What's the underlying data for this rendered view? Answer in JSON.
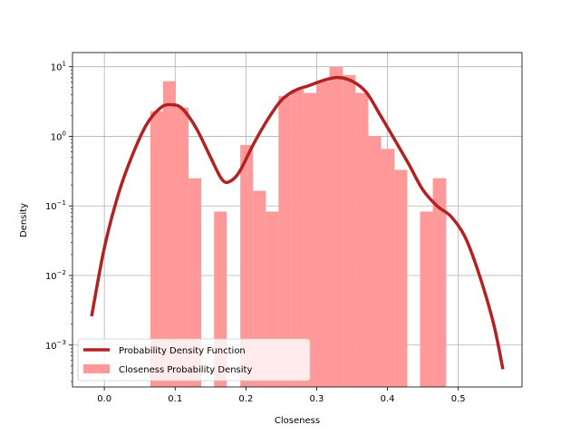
{
  "chart_data": {
    "type": "bar",
    "title": "",
    "xlabel": "Closeness",
    "ylabel": "Density",
    "xlim": [
      -0.045,
      0.59
    ],
    "ylim": [
      0.00025,
      16
    ],
    "y_scale": "log",
    "grid": true,
    "x_ticks": [
      {
        "value": 0.0,
        "label": "0.0"
      },
      {
        "value": 0.1,
        "label": "0.1"
      },
      {
        "value": 0.2,
        "label": "0.2"
      },
      {
        "value": 0.3,
        "label": "0.3"
      },
      {
        "value": 0.4,
        "label": "0.4"
      },
      {
        "value": 0.5,
        "label": "0.5"
      }
    ],
    "y_ticks": [
      {
        "value": 0.001,
        "base": "10",
        "exp": "−3"
      },
      {
        "value": 0.01,
        "base": "10",
        "exp": "−2"
      },
      {
        "value": 0.1,
        "base": "10",
        "exp": "−1"
      },
      {
        "value": 1,
        "base": "10",
        "exp": "0"
      },
      {
        "value": 10,
        "base": "10",
        "exp": "1"
      }
    ],
    "legend_position": "lower-left",
    "series": [
      {
        "name": "Closeness Probability Density",
        "kind": "histogram",
        "color": "#ff9999",
        "bins": [
          {
            "x0": 0.065,
            "x1": 0.083,
            "y": 2.3
          },
          {
            "x0": 0.083,
            "x1": 0.101,
            "y": 6.2
          },
          {
            "x0": 0.101,
            "x1": 0.119,
            "y": 2.6
          },
          {
            "x0": 0.119,
            "x1": 0.137,
            "y": 0.25
          },
          {
            "x0": 0.155,
            "x1": 0.173,
            "y": 0.083
          },
          {
            "x0": 0.192,
            "x1": 0.21,
            "y": 0.75
          },
          {
            "x0": 0.21,
            "x1": 0.228,
            "y": 0.165
          },
          {
            "x0": 0.228,
            "x1": 0.246,
            "y": 0.083
          },
          {
            "x0": 0.246,
            "x1": 0.264,
            "y": 3.8
          },
          {
            "x0": 0.264,
            "x1": 0.282,
            "y": 4.7
          },
          {
            "x0": 0.282,
            "x1": 0.3,
            "y": 4.2
          },
          {
            "x0": 0.3,
            "x1": 0.318,
            "y": 6.2
          },
          {
            "x0": 0.318,
            "x1": 0.337,
            "y": 10
          },
          {
            "x0": 0.337,
            "x1": 0.355,
            "y": 7.6
          },
          {
            "x0": 0.355,
            "x1": 0.373,
            "y": 4.2
          },
          {
            "x0": 0.373,
            "x1": 0.391,
            "y": 1.0
          },
          {
            "x0": 0.391,
            "x1": 0.41,
            "y": 0.66
          },
          {
            "x0": 0.41,
            "x1": 0.428,
            "y": 0.33
          },
          {
            "x0": 0.446,
            "x1": 0.464,
            "y": 0.083
          },
          {
            "x0": 0.464,
            "x1": 0.483,
            "y": 0.25
          }
        ]
      },
      {
        "name": "Probability Density Function",
        "kind": "line",
        "color": "#b22222",
        "points": [
          [
            -0.018,
            0.0026
          ],
          [
            0.0,
            0.025
          ],
          [
            0.02,
            0.15
          ],
          [
            0.04,
            0.55
          ],
          [
            0.06,
            1.5
          ],
          [
            0.08,
            2.6
          ],
          [
            0.095,
            2.85
          ],
          [
            0.11,
            2.5
          ],
          [
            0.13,
            1.3
          ],
          [
            0.15,
            0.5
          ],
          [
            0.165,
            0.25
          ],
          [
            0.175,
            0.22
          ],
          [
            0.19,
            0.3
          ],
          [
            0.21,
            0.75
          ],
          [
            0.23,
            1.7
          ],
          [
            0.25,
            3.3
          ],
          [
            0.27,
            4.6
          ],
          [
            0.29,
            5.4
          ],
          [
            0.31,
            6.4
          ],
          [
            0.33,
            7.0
          ],
          [
            0.35,
            6.2
          ],
          [
            0.37,
            4.3
          ],
          [
            0.39,
            2.0
          ],
          [
            0.41,
            0.9
          ],
          [
            0.43,
            0.4
          ],
          [
            0.45,
            0.17
          ],
          [
            0.47,
            0.1
          ],
          [
            0.49,
            0.07
          ],
          [
            0.51,
            0.035
          ],
          [
            0.53,
            0.01
          ],
          [
            0.55,
            0.002
          ],
          [
            0.563,
            0.00045
          ]
        ]
      }
    ]
  }
}
